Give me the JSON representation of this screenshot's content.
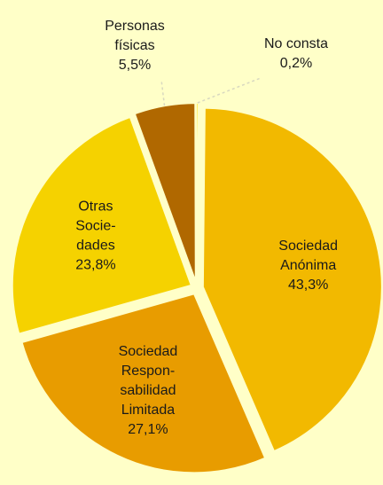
{
  "chart_data": {
    "type": "pie",
    "categories": [
      [
        "Sociedad",
        "Anónima"
      ],
      [
        "Sociedad",
        "Respon-",
        "sabilidad",
        "Limitada"
      ],
      [
        "Otras",
        "Socie-",
        "dades"
      ],
      [
        "Personas",
        "físicas"
      ],
      [
        "No consta"
      ]
    ],
    "values": [
      43.3,
      27.1,
      23.8,
      5.5,
      0.2
    ],
    "value_labels": [
      "43,3%",
      "27,1%",
      "23,8%",
      "5,5%",
      "0,2%"
    ],
    "colors": [
      "#f2b900",
      "#e89c00",
      "#f5d200",
      "#b06800",
      "#ffe100"
    ]
  }
}
